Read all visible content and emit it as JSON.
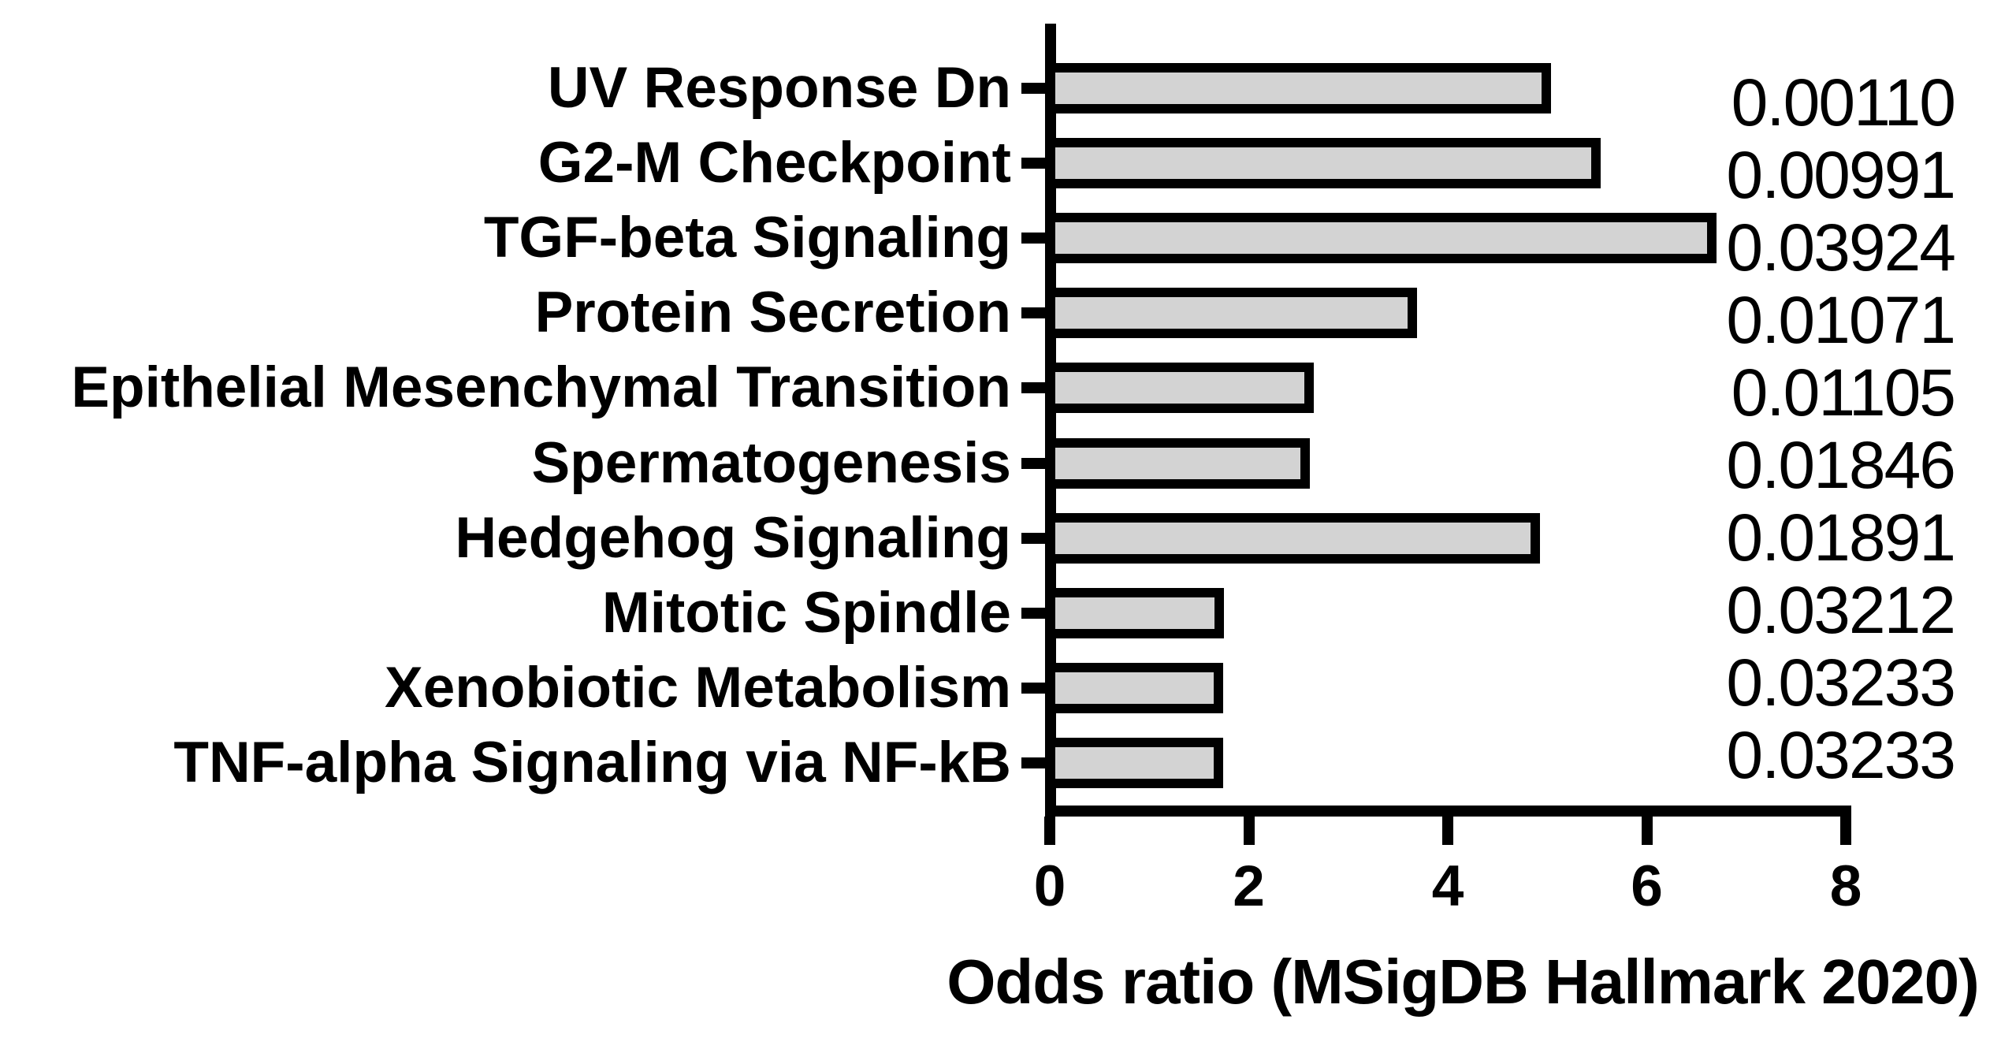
{
  "chart_data": {
    "type": "bar",
    "orientation": "horizontal",
    "title": "",
    "xlabel": "Odds ratio (MSigDB Hallmark 2020)",
    "ylabel": "",
    "xlim": [
      0,
      8
    ],
    "x_ticks": [
      0,
      2,
      4,
      6,
      8
    ],
    "grid": false,
    "legend": "none",
    "bar_fill_color": "#d3d3d3",
    "bar_border_color": "#000000",
    "axis_color": "#000000",
    "background_color": "#ffffff",
    "value_annotation_meaning": "p-value shown right of each bar",
    "categories": [
      "UV Response Dn",
      "G2-M Checkpoint",
      "TGF-beta Signaling",
      "Protein Secretion",
      "Epithelial Mesenchymal Transition",
      "Spermatogenesis",
      "Hedgehog Signaling",
      "Mitotic Spindle",
      "Xenobiotic Metabolism",
      "TNF-alpha Signaling via NF-kB"
    ],
    "values": [
      5.04,
      5.54,
      6.7,
      3.69,
      2.65,
      2.61,
      4.93,
      1.75,
      1.74,
      1.74
    ],
    "p_values": [
      "0.00110",
      "0.00991",
      "0.03924",
      "0.01071",
      "0.01105",
      "0.01846",
      "0.01891",
      "0.03212",
      "0.03233",
      "0.03233"
    ]
  }
}
